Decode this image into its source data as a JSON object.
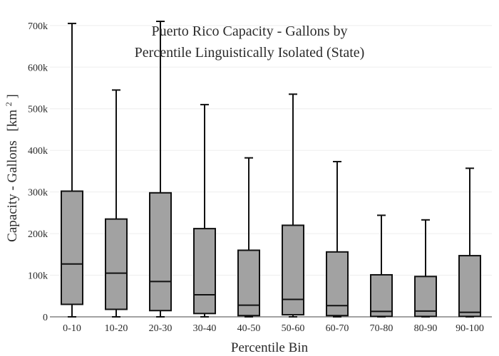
{
  "chart_data": {
    "type": "box",
    "title_lines": [
      "Puerto Rico Capacity - Gallons by",
      "Percentile Linguistically Isolated (State)"
    ],
    "xlabel": "Percentile Bin",
    "ylabel": "Capacity - Gallons",
    "ylabel_unit_prefix": "[km",
    "ylabel_unit_exp": "2",
    "ylabel_unit_suffix": "]",
    "ylim": [
      0,
      710000
    ],
    "yticks": [
      0,
      100000,
      200000,
      300000,
      400000,
      500000,
      600000,
      700000
    ],
    "ytick_labels": [
      "0",
      "100k",
      "200k",
      "300k",
      "400k",
      "500k",
      "600k",
      "700k"
    ],
    "grid": true,
    "categories": [
      "0-10",
      "10-20",
      "20-30",
      "30-40",
      "40-50",
      "50-60",
      "60-70",
      "70-80",
      "80-90",
      "90-100"
    ],
    "boxes": [
      {
        "min": 0,
        "q1": 30000,
        "median": 127000,
        "q3": 302000,
        "max": 705000
      },
      {
        "min": 0,
        "q1": 18000,
        "median": 105000,
        "q3": 235000,
        "max": 545000
      },
      {
        "min": 0,
        "q1": 15000,
        "median": 85000,
        "q3": 298000,
        "max": 710000
      },
      {
        "min": 0,
        "q1": 8000,
        "median": 53000,
        "q3": 212000,
        "max": 510000
      },
      {
        "min": 0,
        "q1": 3000,
        "median": 28000,
        "q3": 160000,
        "max": 382000
      },
      {
        "min": 0,
        "q1": 5000,
        "median": 42000,
        "q3": 220000,
        "max": 535000
      },
      {
        "min": 0,
        "q1": 3000,
        "median": 27000,
        "q3": 156000,
        "max": 373000
      },
      {
        "min": 0,
        "q1": 1000,
        "median": 13000,
        "q3": 101000,
        "max": 244000
      },
      {
        "min": 0,
        "q1": 1000,
        "median": 14000,
        "q3": 97000,
        "max": 233000
      },
      {
        "min": 0,
        "q1": 1000,
        "median": 11000,
        "q3": 147000,
        "max": 357000
      }
    ],
    "colors": {
      "box_fill": "#a2a2a2",
      "box_stroke": "#111111",
      "grid": "#eeeeee"
    }
  }
}
